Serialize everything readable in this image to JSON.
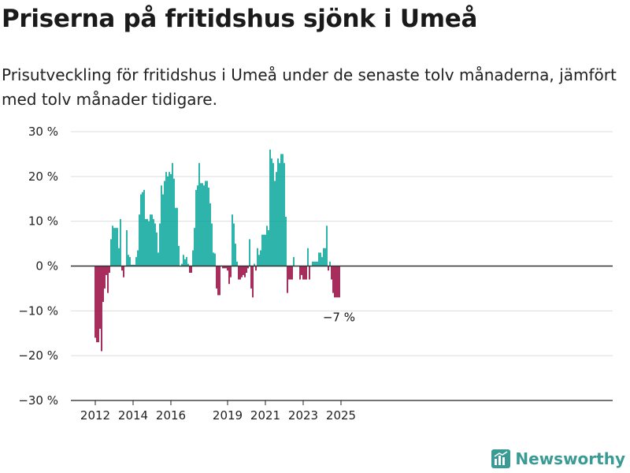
{
  "header": {
    "title": "Priserna på fritidshus sjönk i Umeå",
    "subtitle": "Prisutveckling för fritidshus i Umeå under de senaste tolv månaderna, jämfört med tolv månader tidigare."
  },
  "brand": {
    "name": "Newsworthy",
    "icon": "newsworthy-logo-icon"
  },
  "colors": {
    "positive": "#00a398",
    "negative": "#940038",
    "zero_line": "#333333",
    "grid": "#dddddd",
    "brand": "#3a9a94"
  },
  "chart_data": {
    "type": "bar",
    "x_start": "2011-11",
    "x_end": "2024-12",
    "x_ticks": [
      {
        "label": "2012",
        "date": "2012-01"
      },
      {
        "label": "2014",
        "date": "2014-01"
      },
      {
        "label": "2016",
        "date": "2016-01"
      },
      {
        "label": "2019",
        "date": "2019-01"
      },
      {
        "label": "2021",
        "date": "2021-01"
      },
      {
        "label": "2023",
        "date": "2023-01"
      },
      {
        "label": "2025",
        "date": "2025-01"
      }
    ],
    "y_ticks": [
      {
        "value": 30,
        "label": "30 %"
      },
      {
        "value": 20,
        "label": "20 %"
      },
      {
        "value": 10,
        "label": "10 %"
      },
      {
        "value": 0,
        "label": "0 %"
      },
      {
        "value": -10,
        "label": "−10 %"
      },
      {
        "value": -20,
        "label": "−20 %"
      },
      {
        "value": -30,
        "label": "−30 %"
      }
    ],
    "ylim": [
      -30,
      30
    ],
    "grid": true,
    "annotation": {
      "label": "−7 %",
      "value": -7
    },
    "values": [
      null,
      null,
      -16,
      -17,
      -17,
      -14,
      -19,
      -8,
      -5,
      -2,
      -6,
      -1.5,
      6,
      9,
      8.5,
      8.5,
      8.5,
      4,
      10.5,
      -1,
      -2.5,
      null,
      8,
      2.5,
      2,
      0.3,
      0.3,
      0.3,
      2,
      3.5,
      11.5,
      16,
      16.5,
      17,
      10.5,
      10.5,
      10,
      11.5,
      11.5,
      10.5,
      9.5,
      7.5,
      3,
      9.5,
      18,
      16,
      19,
      21,
      20,
      21,
      20.5,
      23,
      19.5,
      13,
      13,
      4.5,
      null,
      0.5,
      2.5,
      1.5,
      2,
      0.5,
      -1.5,
      -1.5,
      3.5,
      8.5,
      17,
      18,
      23,
      18.5,
      18.5,
      18,
      19,
      19,
      17.5,
      14,
      9.5,
      3,
      2.8,
      -5,
      -6.5,
      -6.5,
      null,
      -0.5,
      -0.5,
      -0.5,
      -1,
      -4,
      -2.5,
      11.5,
      9.5,
      5,
      1,
      -3,
      -3,
      -2.5,
      -2,
      -2.5,
      -1.5,
      -0.5,
      6,
      -5,
      -7,
      0.5,
      -1,
      4,
      2.5,
      3.5,
      7,
      7,
      7,
      9,
      8,
      26,
      24,
      23,
      19,
      21,
      24,
      23,
      25,
      25,
      23,
      11,
      -6,
      -3,
      -3,
      -3,
      2,
      null,
      null,
      null,
      -3,
      -2,
      -3,
      -3,
      -3,
      4,
      -3,
      null,
      1,
      1,
      1,
      1,
      3,
      3,
      2,
      4,
      4,
      9,
      -1,
      1,
      -3,
      -6,
      -7,
      -7,
      -7,
      -7
    ]
  }
}
